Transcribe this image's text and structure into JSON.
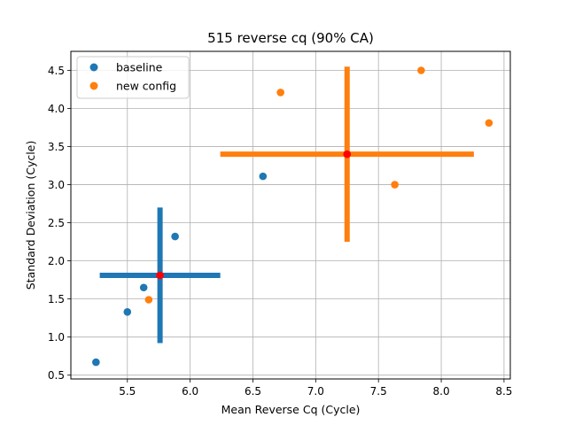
{
  "chart_data": {
    "type": "scatter",
    "title": "515 reverse cq (90% CA)",
    "xlabel": "Mean Reverse Cq (Cycle)",
    "ylabel": "Standard Deviation (Cycle)",
    "xlim": [
      5.05,
      8.55
    ],
    "ylim": [
      0.45,
      4.75
    ],
    "xticks": [
      5.5,
      6.0,
      6.5,
      7.0,
      7.5,
      8.0,
      8.5
    ],
    "xtick_labels": [
      "5.5",
      "6.0",
      "6.5",
      "7.0",
      "7.5",
      "8.0",
      "8.5"
    ],
    "yticks": [
      0.5,
      1.0,
      1.5,
      2.0,
      2.5,
      3.0,
      3.5,
      4.0,
      4.5
    ],
    "ytick_labels": [
      "0.5",
      "1.0",
      "1.5",
      "2.0",
      "2.5",
      "3.0",
      "3.5",
      "4.0",
      "4.5"
    ],
    "grid": true,
    "legend_position": "top-left",
    "series": [
      {
        "name": "baseline",
        "color": "#1f77b4",
        "points": [
          {
            "x": 5.25,
            "y": 0.67
          },
          {
            "x": 5.5,
            "y": 1.33
          },
          {
            "x": 5.63,
            "y": 1.65
          },
          {
            "x": 5.88,
            "y": 2.32
          },
          {
            "x": 6.58,
            "y": 3.11
          }
        ],
        "center": {
          "x": 5.76,
          "y": 1.81
        },
        "x_interval": [
          5.28,
          6.24
        ],
        "y_interval": [
          0.92,
          2.7
        ]
      },
      {
        "name": "new config",
        "color": "#ff7f0e",
        "points": [
          {
            "x": 5.67,
            "y": 1.49
          },
          {
            "x": 6.72,
            "y": 4.21
          },
          {
            "x": 7.63,
            "y": 3.0
          },
          {
            "x": 7.84,
            "y": 4.5
          },
          {
            "x": 8.38,
            "y": 3.81
          }
        ],
        "center": {
          "x": 7.25,
          "y": 3.4
        },
        "x_interval": [
          6.24,
          8.26
        ],
        "y_interval": [
          2.25,
          4.55
        ]
      }
    ],
    "center_marker_color": "#ff0000"
  }
}
